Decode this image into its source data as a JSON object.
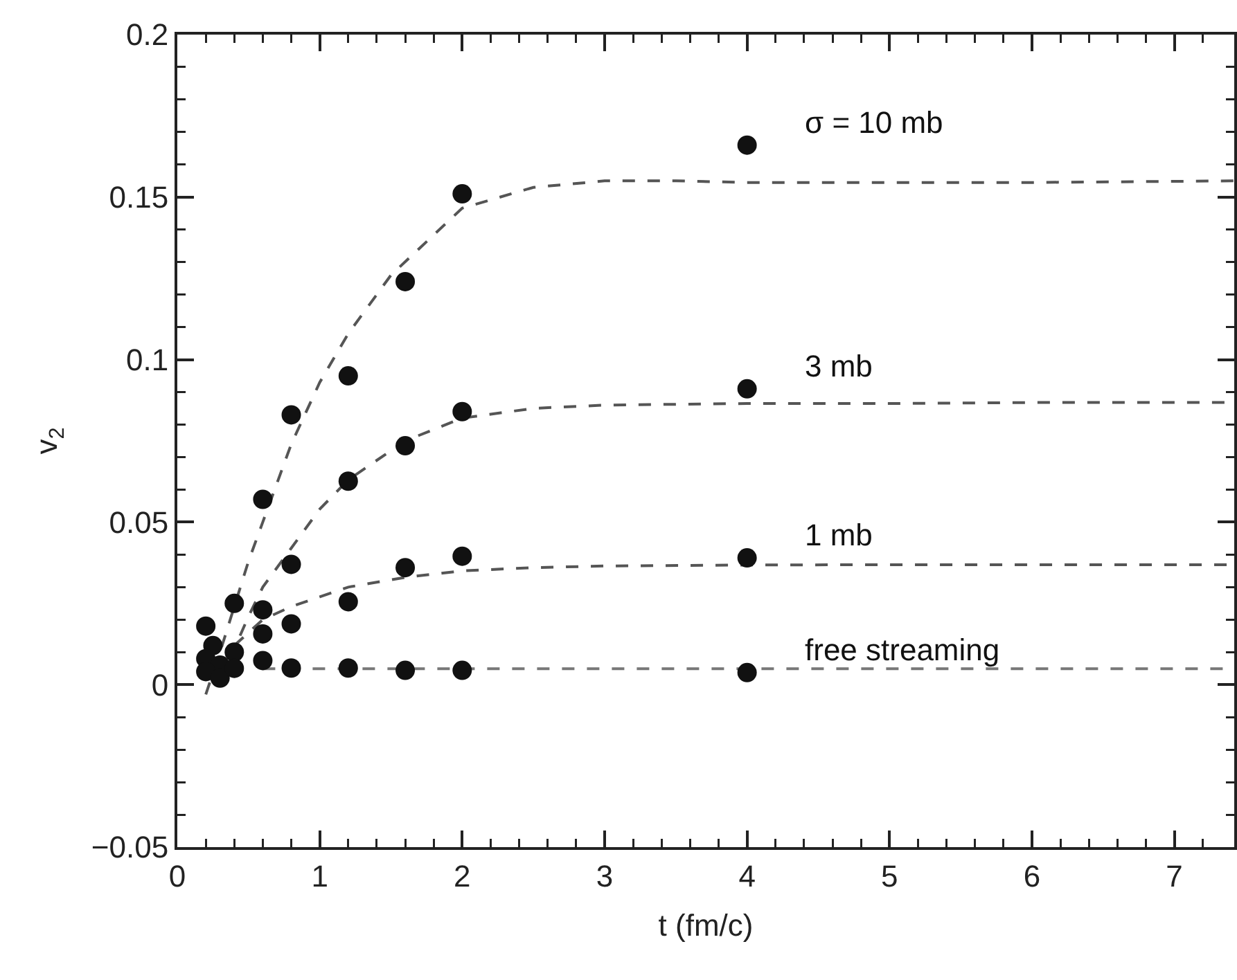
{
  "chart_data": {
    "type": "scatter",
    "xlabel": "t (fm/c)",
    "ylabel": "v$_{2}$",
    "xlim": [
      0,
      7.42
    ],
    "ylim": [
      -0.05,
      0.2
    ],
    "xticks": [
      0,
      {
        "value": 0.2,
        "label": null
      },
      {
        "value": 0.4,
        "label": null
      },
      {
        "value": 0.6,
        "label": null
      },
      {
        "value": 0.8,
        "label": null
      },
      1,
      {
        "value": 1.2,
        "label": null
      },
      {
        "value": 1.4,
        "label": null
      },
      {
        "value": 1.6,
        "label": null
      },
      {
        "value": 1.8,
        "label": null
      },
      2,
      {
        "value": 2.2,
        "label": null
      },
      {
        "value": 2.4,
        "label": null
      },
      {
        "value": 2.6,
        "label": null
      },
      {
        "value": 2.8,
        "label": null
      },
      3,
      {
        "value": 3.2,
        "label": null
      },
      {
        "value": 3.4,
        "label": null
      },
      {
        "value": 3.6,
        "label": null
      },
      {
        "value": 3.8,
        "label": null
      },
      4,
      {
        "value": 4.2,
        "label": null
      },
      {
        "value": 4.4,
        "label": null
      },
      {
        "value": 4.6,
        "label": null
      },
      {
        "value": 4.8,
        "label": null
      },
      5,
      {
        "value": 5.2,
        "label": null
      },
      {
        "value": 5.4,
        "label": null
      },
      {
        "value": 5.6,
        "label": null
      },
      {
        "value": 5.8,
        "label": null
      },
      6,
      {
        "value": 6.2,
        "label": null
      },
      {
        "value": 6.4,
        "label": null
      },
      {
        "value": 6.6,
        "label": null
      },
      {
        "value": 6.8,
        "label": null
      },
      7,
      {
        "value": 7.2,
        "label": null
      }
    ],
    "yticks": [
      {
        "value": -0.05,
        "label": "−0.05"
      },
      {
        "value": -0.04,
        "label": null
      },
      {
        "value": -0.03,
        "label": null
      },
      {
        "value": -0.02,
        "label": null
      },
      {
        "value": -0.01,
        "label": null
      },
      0,
      {
        "value": 0.01,
        "label": null
      },
      {
        "value": 0.02,
        "label": null
      },
      {
        "value": 0.03,
        "label": null
      },
      {
        "value": 0.04,
        "label": null
      },
      0.05,
      {
        "value": 0.06,
        "label": null
      },
      {
        "value": 0.07,
        "label": null
      },
      {
        "value": 0.08,
        "label": null
      },
      {
        "value": 0.09,
        "label": null
      },
      0.1,
      {
        "value": 0.11,
        "label": null
      },
      {
        "value": 0.12,
        "label": null
      },
      {
        "value": 0.13,
        "label": null
      },
      {
        "value": 0.14,
        "label": null
      },
      0.15,
      {
        "value": 0.16,
        "label": null
      },
      {
        "value": 0.17,
        "label": null
      },
      {
        "value": 0.18,
        "label": null
      },
      {
        "value": 0.19,
        "label": null
      },
      0.2
    ],
    "grid": false,
    "legend": false,
    "marker": "circle",
    "series": [
      {
        "type": "line",
        "color": "#555555",
        "line_style": "dashed",
        "marker": "none",
        "x": [
          0.2,
          0.3,
          0.4,
          0.5,
          0.6,
          0.8,
          1,
          1.2,
          1.5,
          2,
          2.5,
          3,
          3.5,
          4,
          5,
          6,
          7.42
        ],
        "values": [
          -0.003,
          0.01,
          0.024,
          0.038,
          0.05,
          0.074,
          0.093,
          0.108,
          0.126,
          0.1466,
          0.153,
          0.155,
          0.155,
          0.1545,
          0.1545,
          0.1545,
          0.155
        ]
      },
      {
        "type": "line",
        "color": "#555555",
        "line_style": "dashed",
        "marker": "none",
        "x": [
          0.3,
          0.4,
          0.5,
          0.6,
          0.8,
          1,
          1.2,
          1.6,
          2,
          2.5,
          3,
          4,
          5,
          6,
          7.42
        ],
        "values": [
          0.001,
          0.011,
          0.021,
          0.03,
          0.042,
          0.054,
          0.063,
          0.075,
          0.082,
          0.085,
          0.086,
          0.0865,
          0.0865,
          0.0868,
          0.0868
        ]
      },
      {
        "type": "line",
        "color": "#555555",
        "line_style": "dashed",
        "marker": "none",
        "x": [
          0.4,
          0.6,
          0.8,
          1,
          1.2,
          1.6,
          2,
          2.5,
          3,
          4,
          5,
          7.42
        ],
        "values": [
          0.012,
          0.02,
          0.024,
          0.027,
          0.03,
          0.033,
          0.035,
          0.036,
          0.0365,
          0.0368,
          0.0369,
          0.0369
        ]
      },
      {
        "type": "line",
        "color": "#777777",
        "line_style": "dashed",
        "marker": "none",
        "x": [
          0.6,
          1,
          2,
          3,
          4,
          5,
          6,
          7.42
        ],
        "values": [
          0.0049,
          0.0049,
          0.0049,
          0.0049,
          0.0049,
          0.0049,
          0.0049,
          0.0049
        ]
      },
      {
        "name": "σ = 10 mb",
        "color": "#111111",
        "x": [
          0.2,
          0.25,
          0.4,
          0.6,
          0.8,
          1.2,
          1.6,
          2,
          4
        ],
        "values": [
          0.018,
          0.012,
          0.025,
          0.057,
          0.083,
          0.095,
          0.124,
          0.151,
          0.166
        ]
      },
      {
        "name": "3 mb",
        "color": "#111111",
        "x": [
          0.2,
          0.3,
          0.4,
          0.6,
          0.8,
          1.2,
          1.6,
          2,
          4
        ],
        "values": [
          0.008,
          0.006,
          null,
          0.023,
          0.037,
          0.0626,
          0.0735,
          0.084,
          0.091
        ]
      },
      {
        "name": "1 mb",
        "color": "#111111",
        "x": [
          0.4,
          0.6,
          0.8,
          1.2,
          1.6,
          2,
          4
        ],
        "values": [
          0.01,
          0.0156,
          0.0187,
          0.0255,
          0.036,
          0.0395,
          0.039
        ]
      },
      {
        "name": "free streaming",
        "color": "#111111",
        "x": [
          0.2,
          0.3,
          0.4,
          0.6,
          0.8,
          1.2,
          1.6,
          2,
          4
        ],
        "values": [
          0.004,
          0.002,
          0.005,
          0.0074,
          0.0051,
          0.0051,
          0.0044,
          0.0044,
          0.0037
        ]
      }
    ]
  }
}
